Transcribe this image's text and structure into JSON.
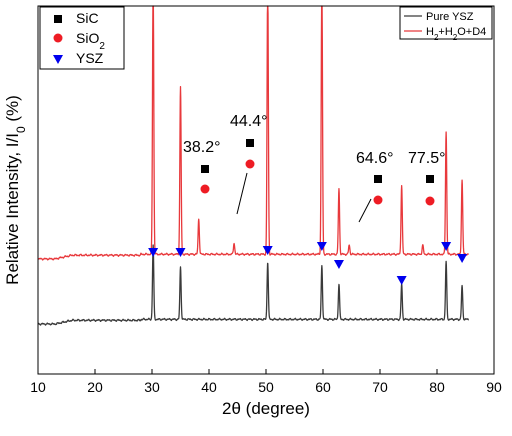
{
  "chart_data": {
    "type": "line",
    "xlabel": "2θ (degree)",
    "ylabel": "Relative Intensity, I/I",
    "ylabel_sub": "0",
    "ylabel_unit": " (%)",
    "xlim": [
      10,
      90
    ],
    "x_ticks": [
      "10",
      "20",
      "30",
      "40",
      "50",
      "60",
      "70",
      "80",
      "90"
    ],
    "y_ticks_shown": false,
    "grid": false,
    "series_legend": {
      "placement": "top-right"
    },
    "phase_legend": {
      "placement": "top-left"
    },
    "series": [
      {
        "name": "Pure YSZ",
        "color": "#3a3a3a",
        "baseline": 0,
        "peaks": [
          {
            "x": 30.2,
            "h": 0.8
          },
          {
            "x": 35.0,
            "h": 0.56
          },
          {
            "x": 50.3,
            "h": 0.62
          },
          {
            "x": 59.8,
            "h": 0.58
          },
          {
            "x": 62.8,
            "h": 0.38
          },
          {
            "x": 73.8,
            "h": 0.38
          },
          {
            "x": 81.6,
            "h": 0.62
          },
          {
            "x": 84.4,
            "h": 0.36
          }
        ]
      },
      {
        "name": "H2+H2O+D4",
        "legend_main": "H",
        "legend_parts": [
          "2",
          "+H",
          "2",
          "O+D4"
        ],
        "color": "#e8393c",
        "baseline": 0.7,
        "peaks": [
          {
            "x": 30.2,
            "h": 3.0
          },
          {
            "x": 35.0,
            "h": 1.8
          },
          {
            "x": 38.2,
            "h": 0.38
          },
          {
            "x": 44.4,
            "h": 0.12
          },
          {
            "x": 50.3,
            "h": 3.0
          },
          {
            "x": 59.8,
            "h": 3.0
          },
          {
            "x": 62.8,
            "h": 0.7
          },
          {
            "x": 64.6,
            "h": 0.1
          },
          {
            "x": 73.8,
            "h": 0.74
          },
          {
            "x": 77.5,
            "h": 0.1
          },
          {
            "x": 81.6,
            "h": 1.32
          },
          {
            "x": 84.4,
            "h": 0.8
          }
        ]
      }
    ],
    "phases": [
      {
        "name": "SiC",
        "marker": "square",
        "color": "#000000"
      },
      {
        "name": "SiO",
        "sub": "2",
        "marker": "circle",
        "color": "#ee1c24"
      },
      {
        "name": "YSZ",
        "marker": "triangle-down",
        "color": "#0000ee"
      }
    ],
    "annotations": [
      {
        "label": "38.2°",
        "x": 38.2
      },
      {
        "label": "44.4°",
        "x": 44.4
      },
      {
        "label": "64.6°",
        "x": 64.6
      },
      {
        "label": "77.5°",
        "x": 77.5
      }
    ],
    "ysz_markers_x": [
      30.2,
      35.0,
      50.3,
      59.8,
      62.8,
      73.8,
      81.6,
      84.4
    ]
  }
}
